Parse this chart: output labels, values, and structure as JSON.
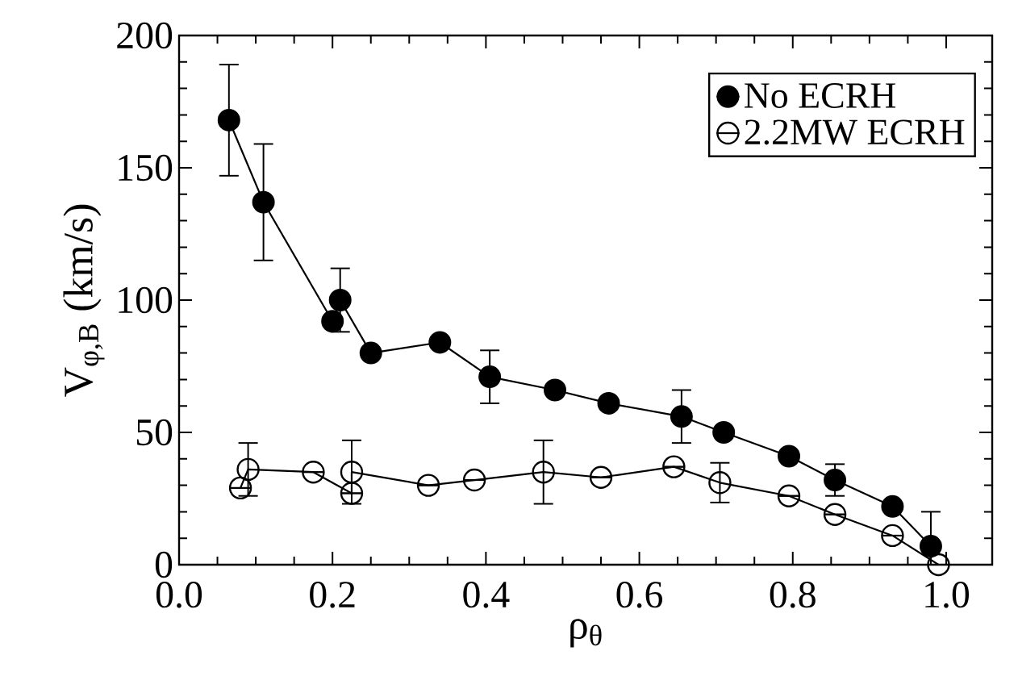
{
  "chart_data": {
    "type": "line",
    "xlabel": "ρ$_{θ}$",
    "ylabel": "V$_{φ,B}$ (km/s)",
    "xlim": [
      0,
      1.06
    ],
    "ylim": [
      0,
      200
    ],
    "xticks": [
      {
        "value": 0,
        "label": "0.0"
      },
      {
        "value": 0.2,
        "label": "0.2"
      },
      {
        "value": 0.4,
        "label": "0.4"
      },
      {
        "value": 0.6,
        "label": "0.6"
      },
      {
        "value": 0.8,
        "label": "0.8"
      },
      {
        "value": 1.0,
        "label": "1.0"
      }
    ],
    "yticks": [
      0,
      50,
      100,
      150,
      200
    ],
    "grid": false,
    "legend": "top right",
    "series": [
      {
        "name": "No ECRH",
        "color": "#000000",
        "marker": "circle",
        "x": [
          0.065,
          0.11,
          0.2,
          0.21,
          0.25,
          0.34,
          0.405,
          0.49,
          0.56,
          0.655,
          0.71,
          0.795,
          0.855,
          0.93,
          0.98
        ],
        "values": [
          168,
          137,
          92,
          100,
          80,
          84,
          71,
          66,
          61,
          56,
          50,
          41,
          32,
          22,
          7
        ],
        "errors": [
          21,
          22,
          null,
          12,
          null,
          null,
          10,
          null,
          null,
          10,
          null,
          null,
          6,
          null,
          [
            0,
            20
          ]
        ]
      },
      {
        "name": "2.2MW ECRH",
        "color": "#000000",
        "marker": "open circle",
        "x": [
          0.08,
          0.09,
          0.175,
          0.225,
          0.225,
          0.325,
          0.385,
          0.475,
          0.55,
          0.645,
          0.705,
          0.795,
          0.855,
          0.93,
          0.99
        ],
        "values": [
          29,
          36,
          35,
          27,
          35,
          30,
          32,
          35,
          33,
          37,
          31,
          26,
          19,
          11,
          0
        ],
        "errors": [
          null,
          10,
          null,
          null,
          12,
          null,
          null,
          12,
          null,
          null,
          7.5,
          null,
          null,
          null,
          null
        ]
      }
    ]
  }
}
